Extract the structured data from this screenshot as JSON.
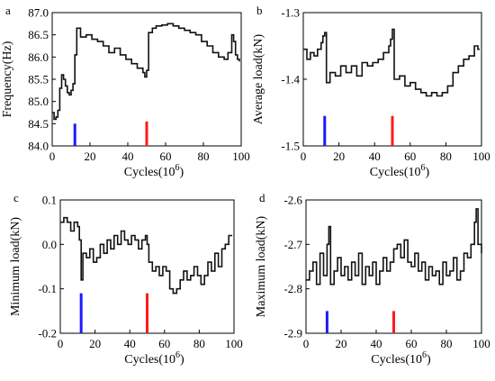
{
  "chart_data": [
    {
      "id": "a",
      "panel_label": "a",
      "type": "line",
      "xlabel": "Cycles(10",
      "xlabel_sup": "6",
      "xlabel_close": ")",
      "ylabel": "Frequency(Hz)",
      "xlim": [
        0,
        100
      ],
      "ylim": [
        84.0,
        87.0
      ],
      "xticks": [
        "0",
        "20",
        "40",
        "60",
        "80",
        "100"
      ],
      "yticks": [
        "84.0",
        "84.5",
        "85.0",
        "85.5",
        "86.0",
        "86.5",
        "87.0"
      ],
      "markers": [
        {
          "x": 12,
          "y_from": 84.0,
          "y_to": 84.5,
          "color": "#1a1aff"
        },
        {
          "x": 50,
          "y_from": 84.0,
          "y_to": 84.55,
          "color": "#ff1a1a"
        }
      ],
      "series": [
        {
          "color": "#111111",
          "x": [
            0,
            1,
            2,
            3,
            4,
            5,
            6,
            7,
            8,
            9,
            10,
            11,
            12,
            13,
            15,
            18,
            21,
            24,
            27,
            30,
            33,
            36,
            39,
            42,
            45,
            48,
            49,
            50,
            51,
            53,
            55,
            58,
            61,
            64,
            67,
            70,
            73,
            76,
            79,
            82,
            85,
            88,
            91,
            93,
            95,
            96,
            97,
            98,
            99
          ],
          "y": [
            84.75,
            84.6,
            84.65,
            84.8,
            85.3,
            85.6,
            85.5,
            85.35,
            85.2,
            85.15,
            85.25,
            85.4,
            86.05,
            86.65,
            86.45,
            86.5,
            86.4,
            86.35,
            86.25,
            86.1,
            86.2,
            86.05,
            85.95,
            85.85,
            85.75,
            85.65,
            85.55,
            85.7,
            86.55,
            86.65,
            86.7,
            86.72,
            86.75,
            86.7,
            86.65,
            86.6,
            86.55,
            86.5,
            86.35,
            86.25,
            86.1,
            86.0,
            85.95,
            86.1,
            86.5,
            86.35,
            86.05,
            85.95,
            85.9
          ]
        }
      ]
    },
    {
      "id": "b",
      "panel_label": "b",
      "type": "line",
      "xlabel": "Cycles(10",
      "xlabel_sup": "6",
      "xlabel_close": ")",
      "ylabel": "Average load(kN)",
      "xlim": [
        0,
        100
      ],
      "ylim": [
        -1.5,
        -1.3
      ],
      "xticks": [
        "0",
        "20",
        "40",
        "60",
        "80",
        "100"
      ],
      "yticks": [
        "-1.5",
        "-1.4",
        "-1.3"
      ],
      "markers": [
        {
          "x": 12,
          "y_from": -1.5,
          "y_to": -1.455,
          "color": "#1a1aff"
        },
        {
          "x": 50,
          "y_from": -1.5,
          "y_to": -1.455,
          "color": "#ff1a1a"
        }
      ],
      "series": [
        {
          "color": "#111111",
          "x": [
            0,
            2,
            4,
            6,
            8,
            10,
            11,
            12,
            13,
            15,
            18,
            21,
            24,
            27,
            30,
            33,
            36,
            39,
            42,
            45,
            48,
            49,
            50,
            51,
            54,
            57,
            60,
            63,
            66,
            69,
            72,
            75,
            78,
            81,
            84,
            87,
            90,
            93,
            96,
            98,
            99
          ],
          "y": [
            -1.355,
            -1.37,
            -1.36,
            -1.365,
            -1.355,
            -1.345,
            -1.335,
            -1.33,
            -1.405,
            -1.39,
            -1.395,
            -1.38,
            -1.39,
            -1.38,
            -1.395,
            -1.375,
            -1.38,
            -1.375,
            -1.37,
            -1.36,
            -1.35,
            -1.34,
            -1.325,
            -1.4,
            -1.395,
            -1.41,
            -1.405,
            -1.415,
            -1.42,
            -1.425,
            -1.42,
            -1.425,
            -1.42,
            -1.41,
            -1.39,
            -1.38,
            -1.37,
            -1.365,
            -1.35,
            -1.355,
            -1.355
          ]
        }
      ]
    },
    {
      "id": "c",
      "panel_label": "c",
      "type": "line",
      "xlabel": "Cycles(10",
      "xlabel_sup": "6",
      "xlabel_close": ")",
      "ylabel": "Minimum load(kN)",
      "xlim": [
        0,
        100
      ],
      "ylim": [
        -0.2,
        0.1
      ],
      "xticks": [
        "0",
        "20",
        "40",
        "60",
        "80",
        "100"
      ],
      "yticks": [
        "-0.2",
        "-0.1",
        "0.0",
        "0.1"
      ],
      "markers": [
        {
          "x": 12,
          "y_from": -0.2,
          "y_to": -0.11,
          "color": "#1a1aff"
        },
        {
          "x": 50,
          "y_from": -0.2,
          "y_to": -0.11,
          "color": "#ff1a1a"
        }
      ],
      "series": [
        {
          "color": "#111111",
          "x": [
            0,
            2,
            4,
            6,
            8,
            10,
            11,
            12,
            13,
            15,
            17,
            19,
            21,
            23,
            25,
            27,
            29,
            31,
            33,
            35,
            37,
            39,
            41,
            43,
            45,
            47,
            49,
            50,
            51,
            53,
            55,
            57,
            59,
            61,
            63,
            65,
            67,
            69,
            71,
            73,
            75,
            77,
            79,
            81,
            83,
            85,
            87,
            89,
            91,
            93,
            95,
            97,
            99
          ],
          "y": [
            0.05,
            0.06,
            0.05,
            0.03,
            0.05,
            0.04,
            0.01,
            -0.08,
            -0.02,
            -0.03,
            -0.01,
            -0.04,
            -0.03,
            0.0,
            -0.02,
            0.01,
            -0.01,
            0.02,
            0.0,
            0.03,
            0.01,
            0.0,
            0.02,
            0.01,
            -0.01,
            0.01,
            0.02,
            0.0,
            -0.04,
            -0.06,
            -0.05,
            -0.07,
            -0.05,
            -0.06,
            -0.1,
            -0.11,
            -0.1,
            -0.08,
            -0.06,
            -0.08,
            -0.07,
            -0.05,
            -0.07,
            -0.09,
            -0.07,
            -0.04,
            -0.06,
            -0.02,
            -0.05,
            -0.01,
            0.0,
            0.02,
            0.02
          ]
        }
      ]
    },
    {
      "id": "d",
      "panel_label": "d",
      "type": "line",
      "xlabel": "Cycles(10",
      "xlabel_sup": "6",
      "xlabel_close": ")",
      "ylabel": "Maximum load(kN)",
      "xlim": [
        0,
        100
      ],
      "ylim": [
        -2.9,
        -2.6
      ],
      "xticks": [
        "0",
        "20",
        "40",
        "60",
        "80",
        "100"
      ],
      "yticks": [
        "-2.9",
        "-2.8",
        "-2.7",
        "-2.6"
      ],
      "markers": [
        {
          "x": 12,
          "y_from": -2.9,
          "y_to": -2.85,
          "color": "#1a1aff"
        },
        {
          "x": 50,
          "y_from": -2.9,
          "y_to": -2.85,
          "color": "#ff1a1a"
        }
      ],
      "series": [
        {
          "color": "#111111",
          "x": [
            0,
            2,
            4,
            6,
            8,
            10,
            12,
            13,
            14,
            16,
            18,
            20,
            22,
            24,
            26,
            28,
            30,
            32,
            34,
            36,
            38,
            40,
            42,
            44,
            46,
            48,
            50,
            52,
            54,
            56,
            58,
            60,
            62,
            64,
            66,
            68,
            70,
            72,
            74,
            76,
            78,
            80,
            82,
            84,
            86,
            88,
            90,
            92,
            94,
            96,
            97,
            98,
            100
          ],
          "y": [
            -2.78,
            -2.76,
            -2.74,
            -2.79,
            -2.72,
            -2.77,
            -2.7,
            -2.66,
            -2.79,
            -2.76,
            -2.73,
            -2.77,
            -2.75,
            -2.78,
            -2.74,
            -2.77,
            -2.72,
            -2.79,
            -2.75,
            -2.77,
            -2.74,
            -2.79,
            -2.76,
            -2.73,
            -2.76,
            -2.74,
            -2.71,
            -2.7,
            -2.73,
            -2.69,
            -2.74,
            -2.75,
            -2.72,
            -2.76,
            -2.74,
            -2.78,
            -2.75,
            -2.77,
            -2.76,
            -2.79,
            -2.74,
            -2.77,
            -2.76,
            -2.73,
            -2.78,
            -2.76,
            -2.72,
            -2.73,
            -2.7,
            -2.65,
            -2.62,
            -2.7,
            -2.72
          ]
        }
      ]
    }
  ]
}
